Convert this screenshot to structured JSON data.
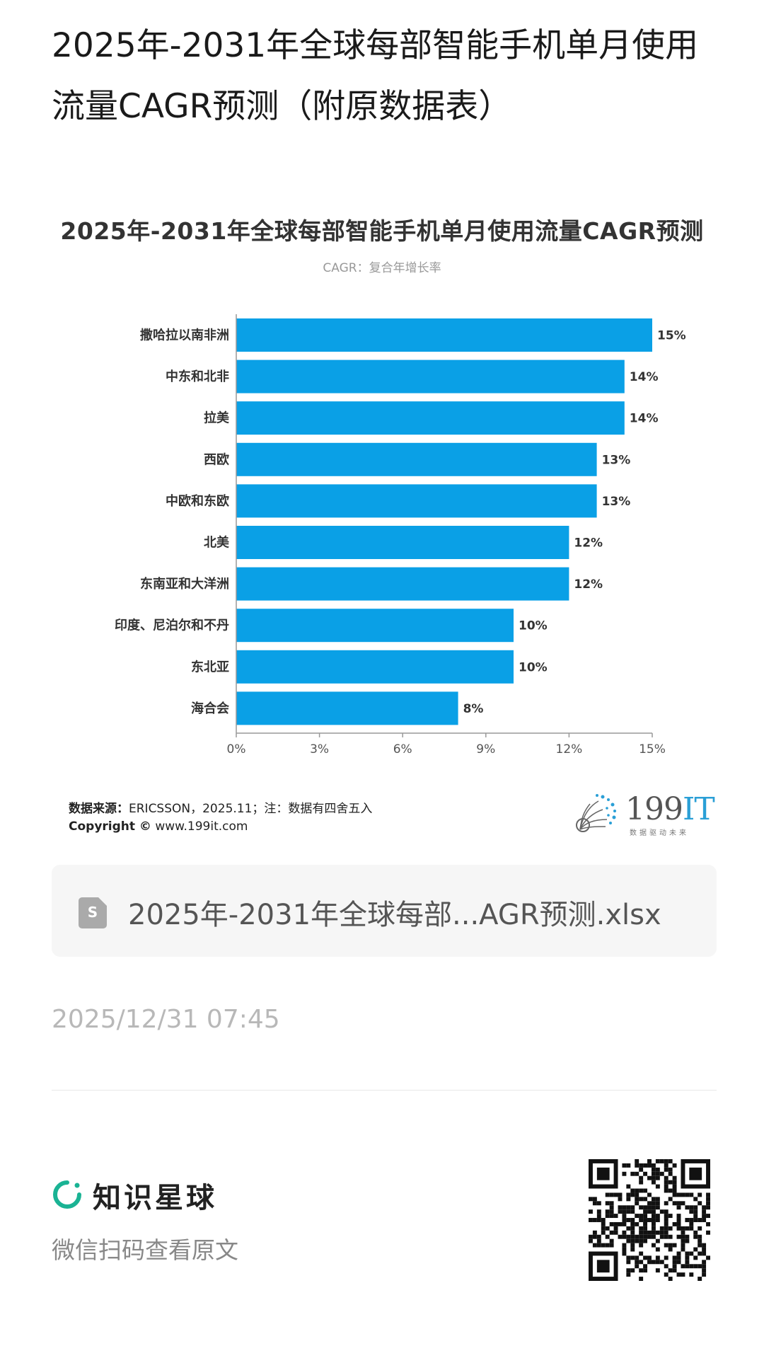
{
  "post": {
    "title": "2025年-2031年全球每部智能手机单月使用流量CAGR预测（附原数据表）"
  },
  "chart_data": {
    "type": "bar",
    "orientation": "horizontal",
    "title": "2025年-2031年全球每部智能手机单月使用流量CAGR预测",
    "subtitle": "CAGR：复合年增长率",
    "categories": [
      "撒哈拉以南非洲",
      "中东和北非",
      "拉美",
      "西欧",
      "中欧和东欧",
      "北美",
      "东南亚和大洋洲",
      "印度、尼泊尔和不丹",
      "东北亚",
      "海合会"
    ],
    "values": [
      15,
      14,
      14,
      13,
      13,
      12,
      12,
      10,
      10,
      8
    ],
    "value_labels": [
      "15%",
      "14%",
      "14%",
      "13%",
      "13%",
      "12%",
      "12%",
      "10%",
      "10%",
      "8%"
    ],
    "xlim": [
      0,
      15
    ],
    "x_ticks": [
      "0%",
      "3%",
      "6%",
      "9%",
      "12%",
      "15%"
    ],
    "bar_color": "#0aa0e6",
    "grid": false
  },
  "source": {
    "label": "数据来源：",
    "text": "ERICSSON，2025.11；注：数据有四舍五入",
    "copyright_label": "Copyright ©",
    "copyright_url": "www.199it.com"
  },
  "logo": {
    "main": "199",
    "accent": "IT",
    "tagline": "数据驱动未来"
  },
  "attachment": {
    "icon": "spreadsheet-icon",
    "icon_letter": "S",
    "filename": "2025年-2031年全球每部...AGR预测.xlsx"
  },
  "timestamp": "2025/12/31 07:45",
  "footer": {
    "brand_name": "知识星球",
    "scan_text": "微信扫码查看原文",
    "brand_color": "#1ab394"
  }
}
